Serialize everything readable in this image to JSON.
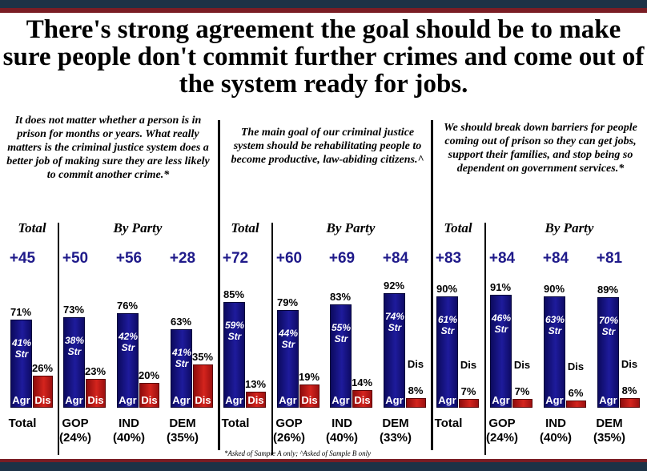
{
  "headline": "There's strong agreement the goal should be to make sure people don't commit further crimes and come out of the system ready for jobs.",
  "labels": {
    "total": "Total",
    "by_party": "By Party",
    "agree": "Agr",
    "disagree": "Dis",
    "strong": "Str"
  },
  "footnote": "*Asked of Sample A only; ^Asked of Sample B only",
  "colors": {
    "agree": "#1e1b9c",
    "disagree": "#d4241d",
    "net": "#1f1a8a",
    "top_bar": "#1d3246",
    "accent_bar": "#7a1d24"
  },
  "chart_data": [
    {
      "type": "bar",
      "title": "It does not matter whether a person is in prison for months or years. What really matters is the criminal justice system does a better job of making sure they are less likely to commit another crime.*",
      "categories": [
        "Total",
        "GOP (24%)",
        "IND (40%)",
        "DEM (35%)"
      ],
      "series": [
        {
          "name": "Agr",
          "values": [
            71,
            73,
            76,
            63
          ],
          "strong": [
            41,
            38,
            42,
            41
          ]
        },
        {
          "name": "Dis",
          "values": [
            26,
            23,
            20,
            35
          ]
        }
      ],
      "net": [
        "+45",
        "+50",
        "+56",
        "+28"
      ],
      "ylim": [
        0,
        100
      ]
    },
    {
      "type": "bar",
      "title": "The main goal of our criminal justice system should be rehabilitating people to become productive, law-abiding citizens.^",
      "categories": [
        "Total",
        "GOP (26%)",
        "IND (40%)",
        "DEM (33%)"
      ],
      "series": [
        {
          "name": "Agr",
          "values": [
            85,
            79,
            83,
            92
          ],
          "strong": [
            59,
            44,
            55,
            74
          ]
        },
        {
          "name": "Dis",
          "values": [
            13,
            19,
            14,
            8
          ]
        }
      ],
      "net": [
        "+72",
        "+60",
        "+69",
        "+84"
      ],
      "ylim": [
        0,
        100
      ]
    },
    {
      "type": "bar",
      "title": "We should break down barriers for people coming out of prison so they can get jobs, support their families, and stop being so dependent on government services.*",
      "categories": [
        "Total",
        "GOP (24%)",
        "IND (40%)",
        "DEM (35%)"
      ],
      "series": [
        {
          "name": "Agr",
          "values": [
            90,
            91,
            90,
            89
          ],
          "strong": [
            61,
            46,
            63,
            70
          ]
        },
        {
          "name": "Dis",
          "values": [
            7,
            7,
            6,
            8
          ]
        }
      ],
      "net": [
        "+83",
        "+84",
        "+84",
        "+81"
      ],
      "ylim": [
        0,
        100
      ]
    }
  ]
}
